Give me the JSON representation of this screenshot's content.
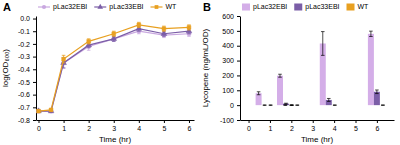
{
  "chart_data": [
    {
      "type": "line",
      "title": "A",
      "xlabel": "Time (hr)",
      "ylabel": "log(OD₆₀₀)",
      "x": [
        0,
        0.5,
        1,
        2,
        3,
        4,
        5,
        6
      ],
      "xlim": [
        -0.1,
        6.2
      ],
      "ylim": [
        -0.8,
        0.02
      ],
      "xticks": [
        0,
        1,
        2,
        3,
        4,
        5,
        6
      ],
      "yticks": [
        {
          "value": 0,
          "label": "0.0"
        },
        -0.1,
        -0.2,
        -0.3,
        -0.4,
        -0.5,
        -0.6,
        -0.7,
        -0.8
      ],
      "legend": "upper left",
      "series": [
        {
          "name": "pLac32EBI",
          "color": "#c9a8e0",
          "marker": "circle",
          "line_style": "solid",
          "values": [
            -0.73,
            -0.73,
            -0.35,
            -0.22,
            -0.16,
            -0.1,
            -0.13,
            -0.12
          ],
          "yerr": [
            0.01,
            0.01,
            0.04,
            0.03,
            0.02,
            0.02,
            0.02,
            0.02
          ]
        },
        {
          "name": "pLac33EBI",
          "color": "#7b5ea7",
          "marker": "triangle",
          "line_style": "solid",
          "values": [
            -0.73,
            -0.73,
            -0.35,
            -0.21,
            -0.16,
            -0.08,
            -0.12,
            -0.1
          ],
          "yerr": [
            0.01,
            0.01,
            0.04,
            0.02,
            0.02,
            0.02,
            0.02,
            0.02
          ]
        },
        {
          "name": "WT",
          "color": "#e8a020",
          "marker": "square",
          "line_style": "solid",
          "values": [
            -0.73,
            -0.72,
            -0.32,
            -0.18,
            -0.12,
            -0.05,
            -0.08,
            -0.07
          ],
          "yerr": [
            0.01,
            0.01,
            0.03,
            0.02,
            0.02,
            0.02,
            0.02,
            0.02
          ]
        }
      ]
    },
    {
      "type": "bar",
      "title": "B",
      "xlabel": "Time (hr)",
      "ylabel": "Lycopene (ng/mL/OD)",
      "x": [
        0.75,
        1.75,
        2.0,
        3.75,
        6.0
      ],
      "xlim": [
        -0.4,
        6.8
      ],
      "ylim": [
        -100,
        600
      ],
      "xticks": [
        0,
        1,
        2,
        3,
        4,
        5,
        6
      ],
      "yticks": [
        -100,
        0,
        100,
        200,
        300,
        400,
        500,
        600
      ],
      "legend": "upper left",
      "series": [
        {
          "name": "pLac32EBI",
          "color": "#d4aee8",
          "values": [
            80,
            198,
            0,
            415,
            480
          ],
          "yerr": [
            10,
            10,
            2,
            80,
            18
          ]
        },
        {
          "name": "pLac33EBI",
          "color": "#7b5ea7",
          "values": [
            0,
            10,
            0,
            35,
            90
          ],
          "yerr": [
            2,
            3,
            2,
            10,
            12
          ]
        },
        {
          "name": "WT",
          "color": "#e8a020",
          "values": [
            0,
            0,
            0,
            0,
            0
          ],
          "yerr": [
            2,
            2,
            2,
            2,
            2
          ]
        }
      ]
    }
  ]
}
